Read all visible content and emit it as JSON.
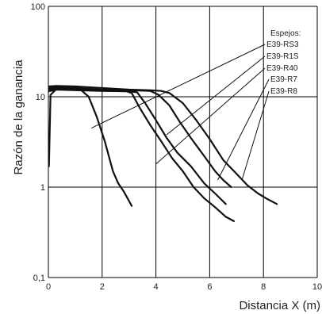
{
  "chart_data": {
    "type": "line",
    "xlabel": "Distancia X (m)",
    "ylabel": "Razón de la ganancia",
    "xscale": "linear",
    "yscale": "log",
    "xlim": [
      0,
      10
    ],
    "ylim": [
      0.1,
      100
    ],
    "x_ticks": [
      0,
      2,
      4,
      6,
      8,
      10
    ],
    "x_tick_labels": [
      "0",
      "2",
      "4",
      "6",
      "8",
      "10"
    ],
    "y_ticks": [
      0.1,
      1,
      10,
      100
    ],
    "y_tick_labels": [
      "0,1",
      "1",
      "10",
      "100"
    ],
    "grid": true,
    "legend_title": "Espejos:",
    "legend_placement": "top-right",
    "series": [
      {
        "name": "E39-RS3",
        "points": [
          [
            0.02,
            1.7
          ],
          [
            0.08,
            10.5
          ],
          [
            0.3,
            12.2
          ],
          [
            0.8,
            12.5
          ],
          [
            1.2,
            12
          ],
          [
            1.5,
            10
          ],
          [
            1.8,
            6
          ],
          [
            2.1,
            3.2
          ],
          [
            2.4,
            1.5
          ],
          [
            2.6,
            1.1
          ],
          [
            2.8,
            0.9
          ],
          [
            3.1,
            0.62
          ]
        ]
      },
      {
        "name": "E39-R1S",
        "points": [
          [
            0.02,
            11.5
          ],
          [
            0.3,
            12
          ],
          [
            1,
            11.8
          ],
          [
            2,
            11.6
          ],
          [
            2.9,
            11.5
          ],
          [
            3.1,
            11
          ],
          [
            3.4,
            7.5
          ],
          [
            3.8,
            4.8
          ],
          [
            4.2,
            3.2
          ],
          [
            4.6,
            2.1
          ],
          [
            5,
            1.5
          ],
          [
            5.4,
            1
          ],
          [
            5.8,
            0.75
          ],
          [
            6.2,
            0.6
          ],
          [
            6.6,
            0.47
          ],
          [
            6.9,
            0.42
          ]
        ]
      },
      {
        "name": "E39-R40",
        "points": [
          [
            0.02,
            12
          ],
          [
            0.3,
            12.5
          ],
          [
            1,
            12.2
          ],
          [
            2,
            11.8
          ],
          [
            3,
            11.5
          ],
          [
            3.3,
            11.2
          ],
          [
            3.6,
            8.5
          ],
          [
            4,
            5.5
          ],
          [
            4.4,
            3.5
          ],
          [
            4.8,
            2.4
          ],
          [
            5.3,
            1.7
          ],
          [
            5.8,
            1.1
          ],
          [
            6.2,
            0.85
          ],
          [
            6.6,
            0.65
          ]
        ]
      },
      {
        "name": "E39-R7",
        "points": [
          [
            0.02,
            12.5
          ],
          [
            0.3,
            12.8
          ],
          [
            1,
            12.5
          ],
          [
            2,
            12
          ],
          [
            3,
            11.8
          ],
          [
            3.8,
            11.6
          ],
          [
            4.1,
            10.5
          ],
          [
            4.5,
            8
          ],
          [
            4.9,
            5.2
          ],
          [
            5.3,
            3.5
          ],
          [
            5.8,
            2.2
          ],
          [
            6.2,
            1.5
          ],
          [
            6.5,
            1.2
          ],
          [
            6.8,
            1
          ]
        ]
      },
      {
        "name": "E39-R8",
        "points": [
          [
            0.02,
            13
          ],
          [
            0.3,
            13.2
          ],
          [
            1,
            13
          ],
          [
            2,
            12.5
          ],
          [
            3,
            12
          ],
          [
            3.8,
            11.8
          ],
          [
            4.2,
            11.6
          ],
          [
            4.5,
            11
          ],
          [
            5,
            8.5
          ],
          [
            5.5,
            5.5
          ],
          [
            6,
            3.4
          ],
          [
            6.5,
            2
          ],
          [
            7,
            1.4
          ],
          [
            7.4,
            1.05
          ],
          [
            7.8,
            0.85
          ],
          [
            8.1,
            0.75
          ],
          [
            8.5,
            0.65
          ]
        ]
      }
    ],
    "leader_targets": [
      {
        "series": "E39-RS3",
        "x": 1.6,
        "y": 4.5
      },
      {
        "series": "E39-R1S",
        "x": 4.4,
        "y": 3.8
      },
      {
        "series": "E39-R40",
        "x": 4.0,
        "y": 1.8
      },
      {
        "series": "E39-R7",
        "x": 6.3,
        "y": 1.2
      },
      {
        "series": "E39-R8",
        "x": 7.2,
        "y": 1.2
      }
    ]
  }
}
